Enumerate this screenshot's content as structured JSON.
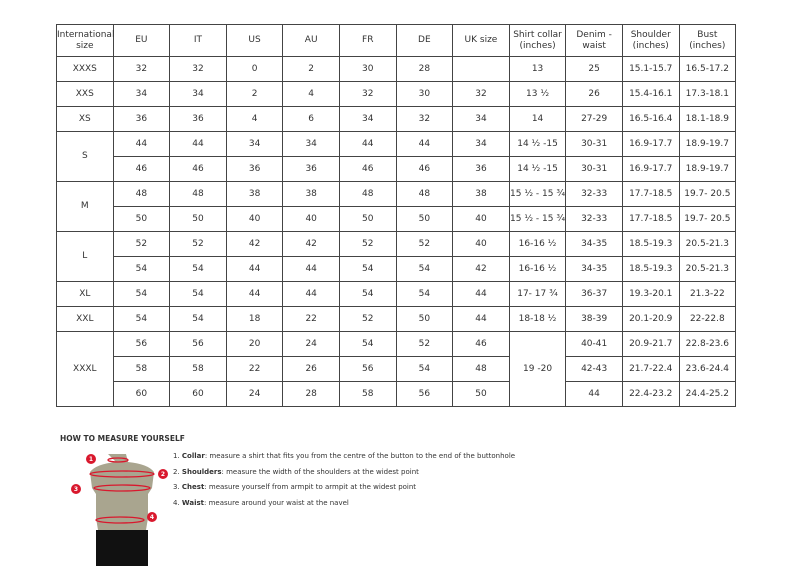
{
  "headers": [
    "International size",
    "EU",
    "IT",
    "US",
    "AU",
    "FR",
    "DE",
    "UK size",
    "Shirt collar (inches)",
    "Denim - waist",
    "Shoulder (inches)",
    "Bust (inches)"
  ],
  "groups": [
    {
      "size": "XXXS",
      "rows": [
        [
          "32",
          "32",
          "0",
          "2",
          "30",
          "28",
          "",
          "13",
          "25",
          "15.1-15.7",
          "16.5-17.2"
        ]
      ]
    },
    {
      "size": "XXS",
      "rows": [
        [
          "34",
          "34",
          "2",
          "4",
          "32",
          "30",
          "32",
          "13 ½",
          "26",
          "15.4-16.1",
          "17.3-18.1"
        ]
      ]
    },
    {
      "size": "XS",
      "rows": [
        [
          "36",
          "36",
          "4",
          "6",
          "34",
          "32",
          "34",
          "14",
          "27-29",
          "16.5-16.4",
          "18.1-18.9"
        ]
      ]
    },
    {
      "size": "S",
      "rows": [
        [
          "44",
          "44",
          "34",
          "34",
          "44",
          "44",
          "34",
          "14 ½ -15",
          "30-31",
          "16.9-17.7",
          "18.9-19.7"
        ],
        [
          "46",
          "46",
          "36",
          "36",
          "46",
          "46",
          "36",
          "14 ½ -15",
          "30-31",
          "16.9-17.7",
          "18.9-19.7"
        ]
      ]
    },
    {
      "size": "M",
      "rows": [
        [
          "48",
          "48",
          "38",
          "38",
          "48",
          "48",
          "38",
          "15 ½ - 15 ¾",
          "32-33",
          "17.7-18.5",
          "19.7- 20.5"
        ],
        [
          "50",
          "50",
          "40",
          "40",
          "50",
          "50",
          "40",
          "15 ½ - 15 ¾",
          "32-33",
          "17.7-18.5",
          "19.7- 20.5"
        ]
      ]
    },
    {
      "size": "L",
      "rows": [
        [
          "52",
          "52",
          "42",
          "42",
          "52",
          "52",
          "40",
          "16-16 ½",
          "34-35",
          "18.5-19.3",
          "20.5-21.3"
        ],
        [
          "54",
          "54",
          "44",
          "44",
          "54",
          "54",
          "42",
          "16-16 ½",
          "34-35",
          "18.5-19.3",
          "20.5-21.3"
        ]
      ]
    },
    {
      "size": "XL",
      "rows": [
        [
          "54",
          "54",
          "44",
          "44",
          "54",
          "54",
          "44",
          "17- 17 ¾",
          "36-37",
          "19.3-20.1",
          "21.3-22"
        ]
      ]
    },
    {
      "size": "XXL",
      "rows": [
        [
          "54",
          "54",
          "18",
          "22",
          "52",
          "50",
          "44",
          "18-18 ½",
          "38-39",
          "20.1-20.9",
          "22-22.8"
        ]
      ]
    },
    {
      "size": "XXXL",
      "collar_merged": "19 -20",
      "rows": [
        [
          "56",
          "56",
          "20",
          "24",
          "54",
          "52",
          "46",
          "",
          "40-41",
          "20.9-21.7",
          "22.8-23.6"
        ],
        [
          "58",
          "58",
          "22",
          "26",
          "56",
          "54",
          "48",
          "",
          "42-43",
          "21.7-22.4",
          "23.6-24.4"
        ],
        [
          "60",
          "60",
          "24",
          "28",
          "58",
          "56",
          "50",
          "",
          "44",
          "22.4-23.2",
          "24.4-25.2"
        ]
      ]
    }
  ],
  "guide": {
    "title": "HOW TO MEASURE YOURSELF",
    "steps": [
      {
        "num": "1.",
        "name": "Collar",
        "text": ": measure a shirt that fits you from the centre of the button to the end of the buttonhole"
      },
      {
        "num": "2.",
        "name": "Shoulders",
        "text": ": measure the width of the shoulders at the widest point"
      },
      {
        "num": "3.",
        "name": "Chest",
        "text": ": measure yourself from armpit to armpit at the widest point"
      },
      {
        "num": "4.",
        "name": "Waist",
        "text": ": measure around your waist at the navel"
      }
    ],
    "markers": [
      "1",
      "2",
      "3",
      "4"
    ],
    "accent": "#d9182d",
    "torso_color": "#a9a58f"
  }
}
